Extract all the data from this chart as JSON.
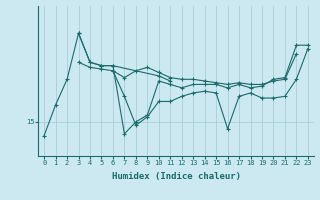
{
  "xlabel": "Humidex (Indice chaleur)",
  "ylabel": "",
  "background_color": "#cce8f0",
  "line_color": "#1a6b6b",
  "grid_color": "#aacdd8",
  "tick_color": "#1a6b6b",
  "xlim": [
    -0.5,
    23.5
  ],
  "ylim": [
    13.0,
    21.8
  ],
  "yticks": [
    15
  ],
  "xticks": [
    0,
    1,
    2,
    3,
    4,
    5,
    6,
    7,
    8,
    9,
    10,
    11,
    12,
    13,
    14,
    15,
    16,
    17,
    18,
    19,
    20,
    21,
    22,
    23
  ],
  "series": [
    [
      0,
      14.2
    ],
    [
      1,
      16.0
    ],
    [
      2,
      17.5
    ],
    [
      3,
      20.2
    ],
    [
      4,
      18.5
    ],
    [
      5,
      18.3
    ],
    [
      6,
      18.3
    ],
    [
      7,
      14.3
    ],
    [
      8,
      15.0
    ],
    [
      9,
      15.4
    ],
    [
      10,
      17.4
    ],
    [
      11,
      17.2
    ],
    [
      12,
      17.0
    ],
    [
      13,
      17.2
    ],
    [
      14,
      17.2
    ],
    [
      15,
      17.2
    ],
    [
      16,
      17.0
    ],
    [
      17,
      17.2
    ],
    [
      18,
      17.0
    ],
    [
      19,
      17.1
    ],
    [
      20,
      17.5
    ],
    [
      21,
      17.6
    ],
    [
      22,
      19.5
    ],
    [
      23,
      19.5
    ]
  ],
  "series2": [
    [
      3,
      20.2
    ],
    [
      4,
      18.5
    ],
    [
      5,
      18.3
    ],
    [
      6,
      18.3
    ],
    [
      10,
      17.7
    ],
    [
      11,
      17.4
    ]
  ],
  "series3": [
    [
      3,
      18.5
    ],
    [
      4,
      18.2
    ],
    [
      5,
      18.1
    ],
    [
      6,
      18.0
    ],
    [
      7,
      17.6
    ],
    [
      8,
      18.0
    ],
    [
      9,
      18.2
    ],
    [
      10,
      17.9
    ],
    [
      11,
      17.6
    ],
    [
      12,
      17.5
    ],
    [
      13,
      17.5
    ],
    [
      14,
      17.4
    ],
    [
      15,
      17.3
    ],
    [
      16,
      17.2
    ],
    [
      17,
      17.3
    ],
    [
      18,
      17.2
    ],
    [
      19,
      17.2
    ],
    [
      20,
      17.4
    ],
    [
      21,
      17.5
    ],
    [
      22,
      19.0
    ]
  ],
  "series4": [
    [
      6,
      18.0
    ],
    [
      7,
      16.5
    ],
    [
      8,
      14.8
    ],
    [
      9,
      15.3
    ],
    [
      10,
      16.2
    ],
    [
      11,
      16.2
    ],
    [
      12,
      16.5
    ],
    [
      13,
      16.7
    ],
    [
      14,
      16.8
    ],
    [
      15,
      16.7
    ],
    [
      16,
      14.6
    ],
    [
      17,
      16.5
    ],
    [
      18,
      16.7
    ],
    [
      19,
      16.4
    ],
    [
      20,
      16.4
    ],
    [
      21,
      16.5
    ],
    [
      22,
      17.5
    ],
    [
      23,
      19.3
    ]
  ],
  "marker": "+",
  "markersize": 3,
  "linewidth": 0.8
}
